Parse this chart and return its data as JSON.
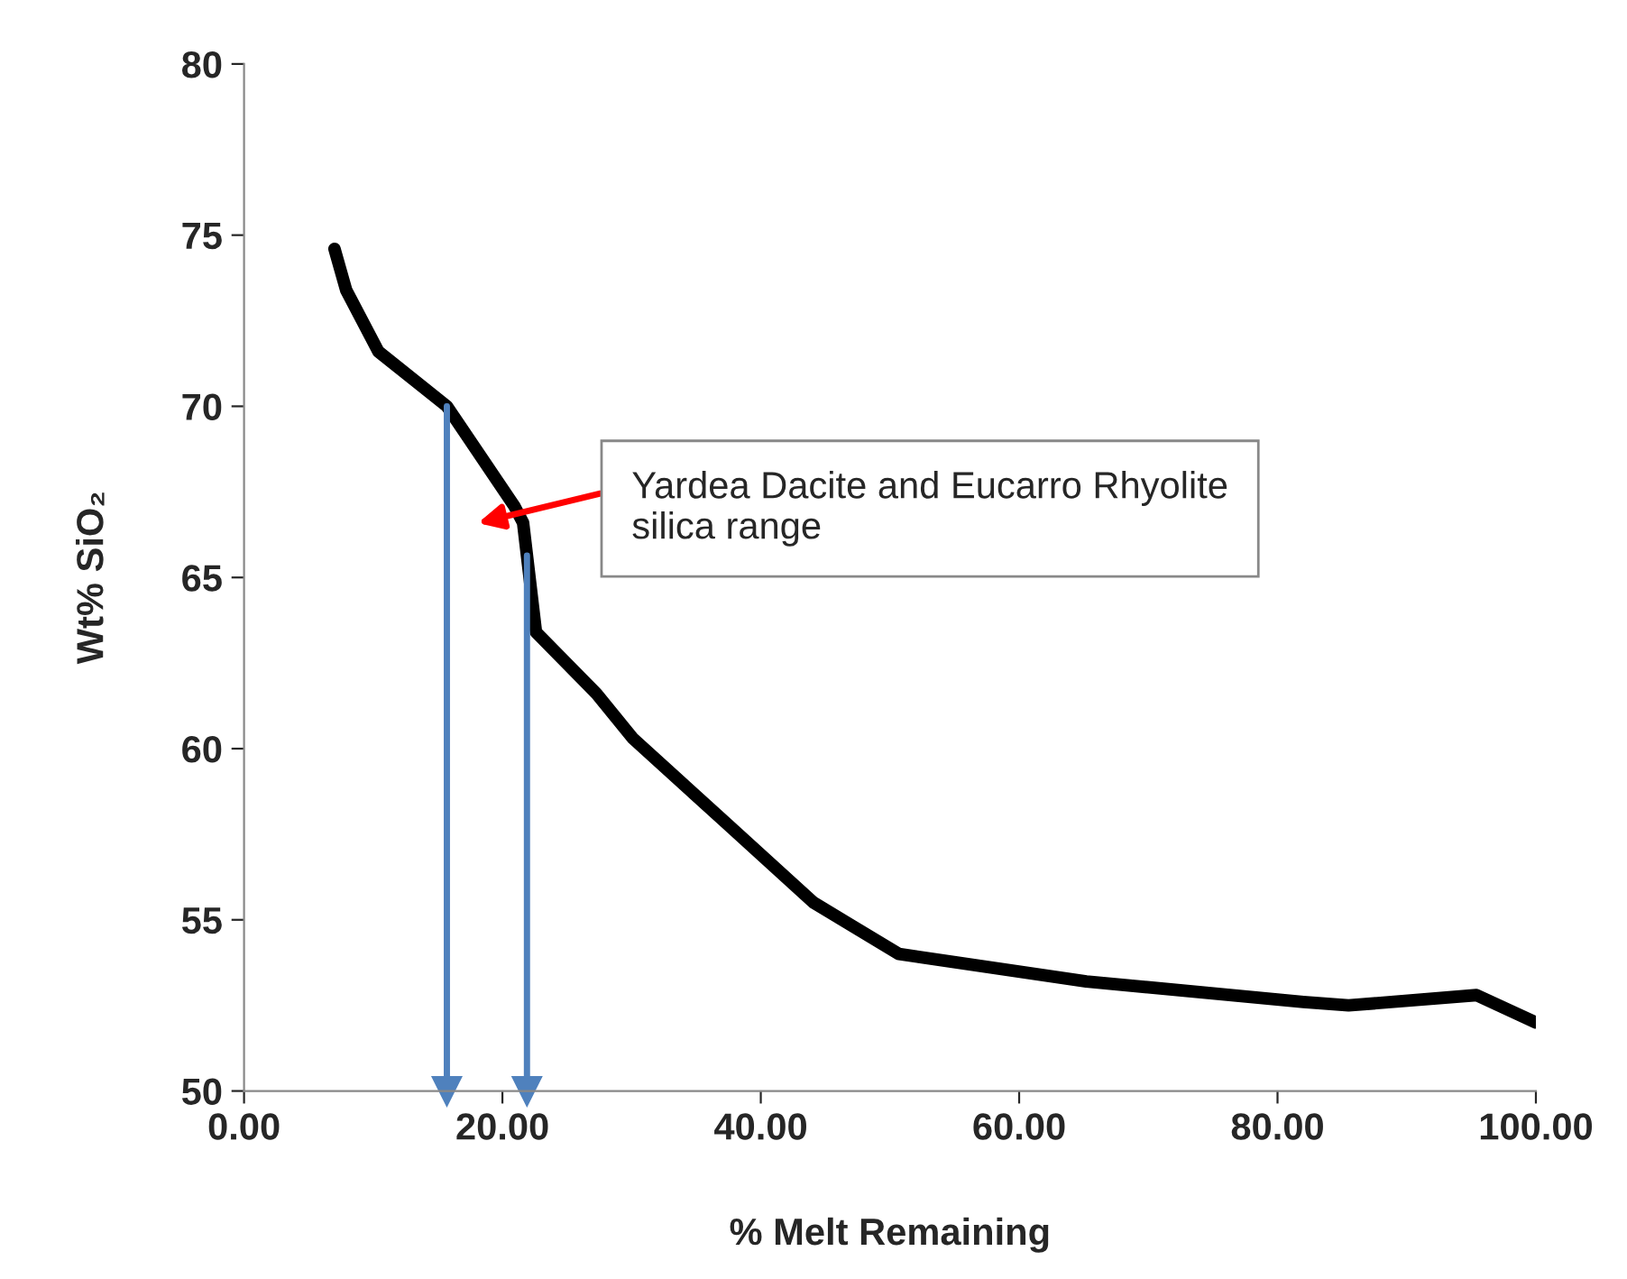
{
  "chart_data": {
    "type": "line",
    "xlabel": "% Melt Remaining",
    "ylabel": "Wt% SiO₂",
    "x": [
      7.0,
      7.9,
      10.4,
      15.7,
      20.9,
      21.6,
      22.6,
      27.3,
      30.1,
      37.1,
      44.1,
      50.7,
      65.2,
      82.0,
      85.5,
      95.4,
      100.0
    ],
    "series": [
      {
        "color": "#000000",
        "values": [
          74.6,
          73.4,
          71.6,
          70.0,
          67.1,
          66.6,
          63.4,
          61.6,
          60.3,
          57.9,
          55.5,
          54.0,
          53.2,
          52.6,
          52.5,
          52.8,
          52.0
        ]
      }
    ],
    "xlim": [
      0,
      100
    ],
    "ylim": [
      50,
      80
    ],
    "xticks": [
      {
        "value": 0,
        "label": "0.00"
      },
      {
        "value": 20,
        "label": "20.00"
      },
      {
        "value": 40,
        "label": "40.00"
      },
      {
        "value": 60,
        "label": "60.00"
      },
      {
        "value": 80,
        "label": "80.00"
      },
      {
        "value": 100,
        "label": "100.00"
      }
    ],
    "yticks": [
      50,
      55,
      60,
      65,
      70,
      75,
      80
    ],
    "ref_lines": [
      {
        "axis": "x",
        "value": 15.7,
        "color": "#4f81bd"
      },
      {
        "axis": "x",
        "value": 21.9,
        "color": "#4f81bd"
      }
    ],
    "annotations": [
      "Yardea Dacite and Eucarro Rhyolite\nsilica range"
    ],
    "grid": false,
    "legend": false,
    "marker": "none",
    "line_style": "solid"
  }
}
